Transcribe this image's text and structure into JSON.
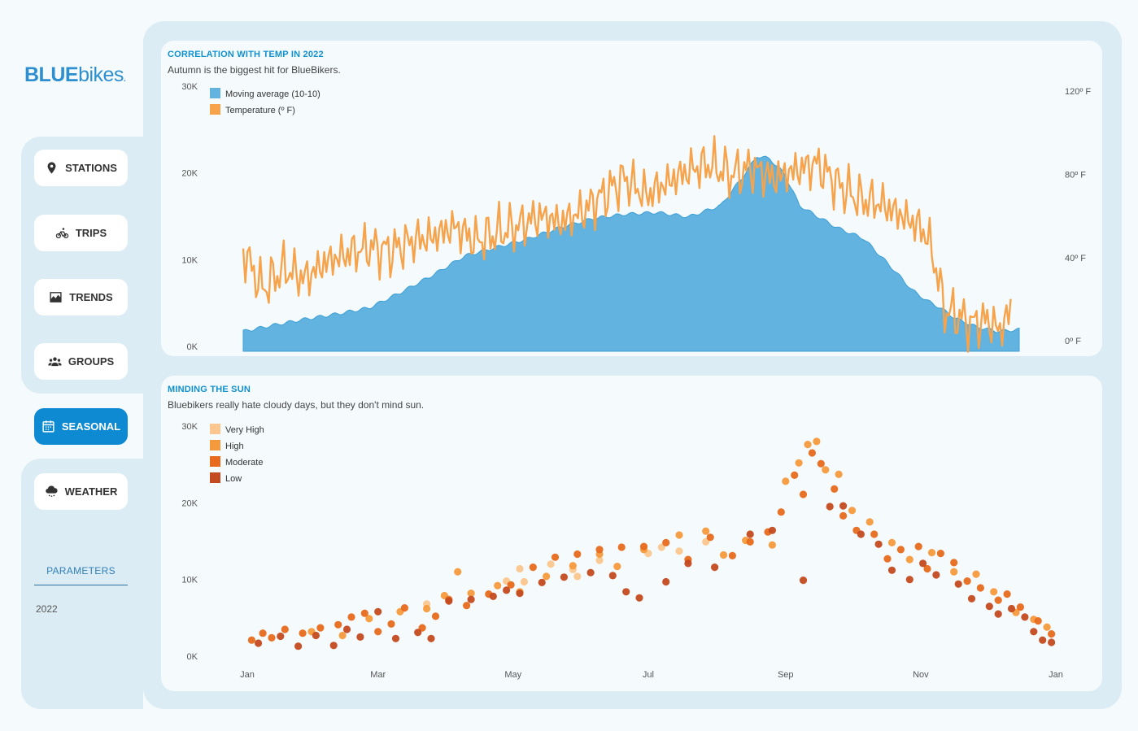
{
  "brand": {
    "logo_bold": "BLUE",
    "logo_thin": "bikes",
    "logo_dot": "."
  },
  "nav": [
    {
      "label": "STATIONS",
      "icon": "map-pin-icon",
      "active": false
    },
    {
      "label": "TRIPS",
      "icon": "bicycle-icon",
      "active": false
    },
    {
      "label": "TRENDS",
      "icon": "chart-icon",
      "active": false
    },
    {
      "label": "GROUPS",
      "icon": "users-icon",
      "active": false
    },
    {
      "label": "SEASONAL",
      "icon": "calendar-icon",
      "active": true
    },
    {
      "label": "WEATHER",
      "icon": "cloud-rain-icon",
      "active": false
    }
  ],
  "parameters": {
    "label": "PARAMETERS",
    "year": "2022"
  },
  "colors": {
    "accent": "#0d8ad1",
    "area": "#62b3df",
    "temp": "#f7a34b",
    "very_high": "#fbc78e",
    "high": "#f59a3c",
    "moderate": "#e86a1e",
    "low": "#c44a1f"
  },
  "chart_data": [
    {
      "type": "area",
      "title": "CORRELATION WITH TEMP IN 2022",
      "subtitle": "Autumn is the biggest hit for BlueBikers.",
      "left_ticks": [
        "0K",
        "10K",
        "20K",
        "30K"
      ],
      "right_ticks": [
        "0º F",
        "40º F",
        "80º F",
        "120º F"
      ],
      "ylim": [
        0,
        30000
      ],
      "y2lim": [
        -5,
        120
      ],
      "legend": [
        "Moving average (10-10)",
        "Temperature (º F)"
      ],
      "series": [
        {
          "name": "Moving average (10-10)",
          "x_day": [
            1,
            15,
            30,
            45,
            60,
            75,
            90,
            105,
            120,
            135,
            150,
            165,
            180,
            195,
            210,
            225,
            235,
            242,
            248,
            255,
            262,
            270,
            280,
            292,
            305,
            315,
            322,
            328,
            335,
            345,
            355,
            365
          ],
          "values": [
            2300,
            3000,
            3700,
            4300,
            5000,
            6800,
            8800,
            11000,
            12000,
            13000,
            14300,
            15300,
            15800,
            16000,
            15500,
            16800,
            20000,
            22500,
            22200,
            20400,
            16800,
            15600,
            14200,
            13000,
            9700,
            7000,
            5800,
            5000,
            3800,
            2800,
            2300,
            2500
          ]
        },
        {
          "name": "Temperature (º F)",
          "x_day": [
            1,
            10,
            20,
            30,
            40,
            50,
            60,
            70,
            80,
            90,
            100,
            110,
            120,
            130,
            140,
            150,
            160,
            170,
            180,
            190,
            200,
            210,
            220,
            230,
            240,
            250,
            260,
            270,
            280,
            290,
            300,
            310,
            318,
            322,
            326,
            330,
            336,
            342,
            350,
            356,
            361
          ],
          "values": [
            43,
            25,
            35,
            30,
            38,
            42,
            45,
            43,
            48,
            50,
            55,
            48,
            52,
            55,
            60,
            57,
            62,
            70,
            78,
            70,
            76,
            82,
            85,
            80,
            83,
            78,
            82,
            85,
            75,
            68,
            66,
            60,
            55,
            50,
            35,
            15,
            12,
            8,
            10,
            5,
            15
          ]
        }
      ]
    },
    {
      "type": "scatter",
      "title": "MINDING THE SUN",
      "subtitle": "Bluebikers really hate cloudy days, but they don't mind sun.",
      "y_ticks": [
        "0K",
        "10K",
        "20K",
        "30K"
      ],
      "x_ticks": [
        "Jan",
        "Mar",
        "May",
        "Jul",
        "Sep",
        "Nov",
        "Jan"
      ],
      "ylim": [
        0,
        30000
      ],
      "legend": [
        "Very High",
        "High",
        "Moderate",
        "Low"
      ],
      "series": [
        {
          "name": "Very High",
          "points": [
            [
              82,
              6800
            ],
            [
              118,
              9800
            ],
            [
              124,
              11400
            ],
            [
              126,
              9700
            ],
            [
              138,
              12000
            ],
            [
              148,
              11300
            ],
            [
              150,
              10400
            ],
            [
              160,
              12500
            ],
            [
              182,
              13400
            ],
            [
              188,
              14200
            ],
            [
              196,
              13700
            ],
            [
              208,
              14900
            ]
          ]
        },
        {
          "name": "High",
          "points": [
            [
              30,
              3200
            ],
            [
              44,
              2700
            ],
            [
              56,
              4900
            ],
            [
              70,
              5800
            ],
            [
              82,
              6200
            ],
            [
              90,
              7900
            ],
            [
              96,
              11000
            ],
            [
              102,
              8200
            ],
            [
              114,
              9200
            ],
            [
              124,
              8400
            ],
            [
              136,
              10400
            ],
            [
              148,
              11800
            ],
            [
              160,
              13300
            ],
            [
              168,
              11700
            ],
            [
              180,
              13900
            ],
            [
              196,
              15800
            ],
            [
              208,
              16300
            ],
            [
              216,
              13200
            ],
            [
              226,
              15100
            ],
            [
              238,
              14500
            ],
            [
              244,
              22800
            ],
            [
              250,
              25200
            ],
            [
              254,
              27600
            ],
            [
              258,
              28000
            ],
            [
              262,
              24300
            ],
            [
              268,
              23700
            ],
            [
              274,
              19000
            ],
            [
              282,
              17500
            ],
            [
              292,
              14800
            ],
            [
              300,
              12600
            ],
            [
              310,
              13500
            ],
            [
              320,
              11000
            ],
            [
              330,
              10700
            ],
            [
              338,
              8400
            ],
            [
              348,
              5700
            ],
            [
              356,
              4800
            ],
            [
              362,
              3800
            ]
          ]
        },
        {
          "name": "Moderate",
          "points": [
            [
              3,
              2100
            ],
            [
              8,
              3000
            ],
            [
              12,
              2400
            ],
            [
              18,
              3500
            ],
            [
              26,
              3000
            ],
            [
              34,
              3700
            ],
            [
              42,
              4100
            ],
            [
              48,
              5100
            ],
            [
              54,
              5600
            ],
            [
              60,
              3200
            ],
            [
              66,
              4200
            ],
            [
              72,
              6300
            ],
            [
              80,
              3700
            ],
            [
              86,
              5200
            ],
            [
              92,
              7400
            ],
            [
              100,
              6600
            ],
            [
              110,
              8100
            ],
            [
              120,
              9300
            ],
            [
              130,
              11600
            ],
            [
              140,
              12900
            ],
            [
              150,
              13300
            ],
            [
              160,
              13900
            ],
            [
              170,
              14200
            ],
            [
              180,
              14300
            ],
            [
              190,
              14800
            ],
            [
              200,
              12600
            ],
            [
              210,
              15500
            ],
            [
              220,
              13100
            ],
            [
              228,
              14900
            ],
            [
              236,
              16200
            ],
            [
              242,
              18800
            ],
            [
              248,
              23600
            ],
            [
              252,
              21100
            ],
            [
              256,
              26500
            ],
            [
              260,
              25100
            ],
            [
              266,
              21800
            ],
            [
              270,
              18300
            ],
            [
              276,
              16400
            ],
            [
              284,
              15900
            ],
            [
              290,
              12700
            ],
            [
              296,
              13900
            ],
            [
              304,
              14300
            ],
            [
              308,
              11400
            ],
            [
              314,
              13400
            ],
            [
              320,
              12200
            ],
            [
              326,
              9800
            ],
            [
              332,
              8900
            ],
            [
              340,
              7300
            ],
            [
              344,
              8100
            ],
            [
              350,
              6400
            ],
            [
              358,
              4600
            ],
            [
              364,
              2900
            ]
          ]
        },
        {
          "name": "Low",
          "points": [
            [
              6,
              1700
            ],
            [
              16,
              2600
            ],
            [
              24,
              1300
            ],
            [
              32,
              2700
            ],
            [
              40,
              1400
            ],
            [
              46,
              3500
            ],
            [
              52,
              2500
            ],
            [
              60,
              5800
            ],
            [
              68,
              2300
            ],
            [
              78,
              3100
            ],
            [
              84,
              2300
            ],
            [
              92,
              7200
            ],
            [
              102,
              7400
            ],
            [
              112,
              7800
            ],
            [
              118,
              8600
            ],
            [
              124,
              8200
            ],
            [
              134,
              9600
            ],
            [
              144,
              10300
            ],
            [
              156,
              10900
            ],
            [
              166,
              10500
            ],
            [
              172,
              8400
            ],
            [
              178,
              7600
            ],
            [
              190,
              9700
            ],
            [
              200,
              12100
            ],
            [
              212,
              11600
            ],
            [
              228,
              15900
            ],
            [
              238,
              16400
            ],
            [
              252,
              9900
            ],
            [
              264,
              19500
            ],
            [
              270,
              19600
            ],
            [
              278,
              15900
            ],
            [
              286,
              14600
            ],
            [
              292,
              11200
            ],
            [
              300,
              10000
            ],
            [
              306,
              12100
            ],
            [
              312,
              10600
            ],
            [
              322,
              9400
            ],
            [
              328,
              7500
            ],
            [
              336,
              6500
            ],
            [
              340,
              5500
            ],
            [
              346,
              6200
            ],
            [
              352,
              5100
            ],
            [
              356,
              3200
            ],
            [
              360,
              2100
            ],
            [
              364,
              1800
            ]
          ]
        }
      ]
    }
  ]
}
